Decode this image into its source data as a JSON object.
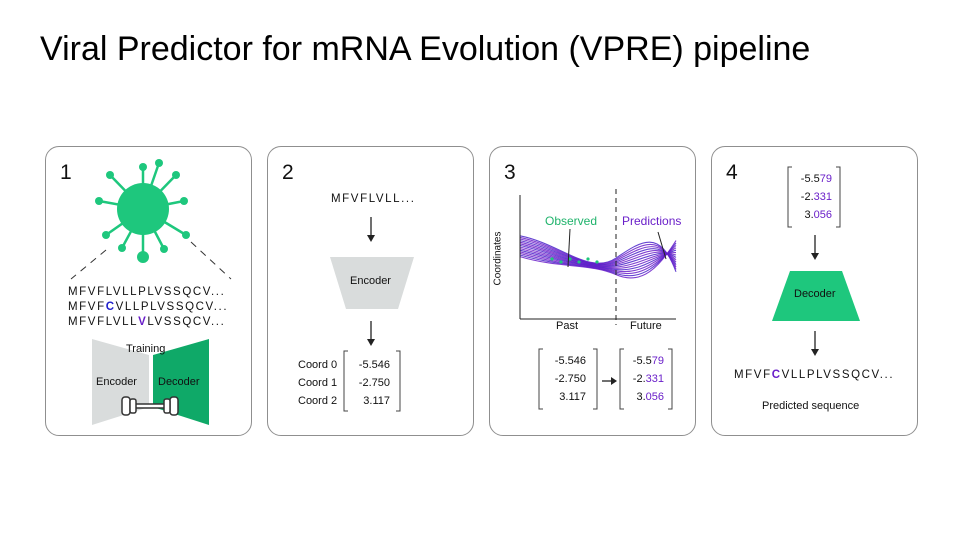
{
  "title": "Viral Predictor for mRNA Evolution (VPRE) pipeline",
  "colors": {
    "green": "#1ec77d",
    "dark_green": "#0fa968",
    "gray": "#d9dcdc",
    "purple": "#6a1fc9",
    "blue": "#2222cc"
  },
  "panel1": {
    "number": "1",
    "virus_icon": "virus-icon",
    "seq1": "MFVFLVLLPLVSSQCV...",
    "seq2_pre": "MFVF",
    "seq2_mut": "C",
    "seq2_post": "VLLPLVSSQCV...",
    "seq3_pre": "MFVFLVLL",
    "seq3_mut": "V",
    "seq3_post": "LVSSQCV...",
    "training_label": "Training",
    "encoder_label": "Encoder",
    "decoder_label": "Decoder",
    "dumbbell_icon": "dumbbell-icon"
  },
  "panel2": {
    "number": "2",
    "sequence": "MFVFLVLL...",
    "encoder_label": "Encoder",
    "coord_labels": [
      "Coord 0",
      "Coord 1",
      "Coord 2"
    ],
    "coord_values": [
      "-5.546",
      "-2.750",
      "3.117"
    ]
  },
  "panel3": {
    "number": "3",
    "observed_label": "Observed",
    "predictions_label": "Predictions",
    "y_label": "Coordinates",
    "x_past": "Past",
    "x_future": "Future",
    "left_values": [
      "-5.546",
      "-2.750",
      "3.117"
    ],
    "right_values": [
      {
        "base": "-5.5",
        "changed": "79"
      },
      {
        "base": "-2.",
        "changed": "331"
      },
      {
        "base": "3.",
        "changed": "056"
      }
    ]
  },
  "panel4": {
    "number": "4",
    "values": [
      {
        "base": "-5.5",
        "changed": "79"
      },
      {
        "base": "-2.",
        "changed": "331"
      },
      {
        "base": "3.",
        "changed": "056"
      }
    ],
    "decoder_label": "Decoder",
    "seq_pre": "MFVF",
    "seq_mut": "C",
    "seq_post": "VLLPLVSSQCV...",
    "caption": "Predicted sequence"
  }
}
